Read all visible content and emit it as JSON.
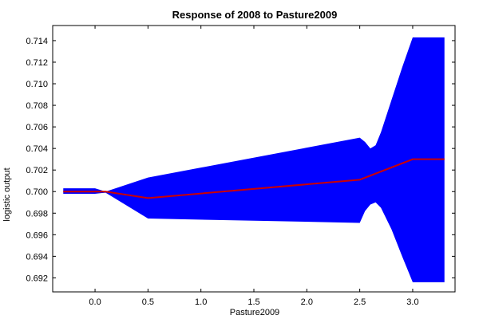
{
  "chart_data": {
    "type": "area",
    "title": "Response of 2008 to Pasture2009",
    "xlabel": "Pasture2009",
    "ylabel": "logistic output",
    "xlim": [
      -0.4,
      3.4
    ],
    "ylim": [
      0.6907,
      0.7154
    ],
    "x_ticks": [
      "0.0",
      "0.5",
      "1.0",
      "1.5",
      "2.0",
      "2.5",
      "3.0"
    ],
    "y_ticks": [
      "0.692",
      "0.694",
      "0.696",
      "0.698",
      "0.700",
      "0.702",
      "0.704",
      "0.706",
      "0.708",
      "0.710",
      "0.712",
      "0.714"
    ],
    "grid": false,
    "band": {
      "color": "#0000ff",
      "upper": [
        [
          -0.3,
          0.7003
        ],
        [
          0.0,
          0.7003
        ],
        [
          0.1,
          0.7
        ],
        [
          0.5,
          0.7013
        ],
        [
          2.5,
          0.705
        ],
        [
          2.55,
          0.7046
        ],
        [
          2.6,
          0.704
        ],
        [
          2.65,
          0.7043
        ],
        [
          2.7,
          0.7055
        ],
        [
          2.8,
          0.7085
        ],
        [
          2.9,
          0.7115
        ],
        [
          3.0,
          0.7143
        ],
        [
          3.3,
          0.7143
        ]
      ],
      "lower": [
        [
          -0.3,
          0.6998
        ],
        [
          0.0,
          0.6998
        ],
        [
          0.1,
          0.6999
        ],
        [
          0.5,
          0.6975
        ],
        [
          2.5,
          0.6971
        ],
        [
          2.55,
          0.6982
        ],
        [
          2.6,
          0.6988
        ],
        [
          2.65,
          0.699
        ],
        [
          2.7,
          0.6985
        ],
        [
          2.8,
          0.6965
        ],
        [
          2.9,
          0.694
        ],
        [
          3.0,
          0.6916
        ],
        [
          3.3,
          0.6916
        ]
      ]
    },
    "series": [
      {
        "color": "#cc0000",
        "x": [
          -0.3,
          0.1,
          0.5,
          2.5,
          3.0,
          3.3
        ],
        "y": [
          0.7,
          0.7,
          0.6994,
          0.7011,
          0.703,
          0.703
        ]
      }
    ]
  }
}
